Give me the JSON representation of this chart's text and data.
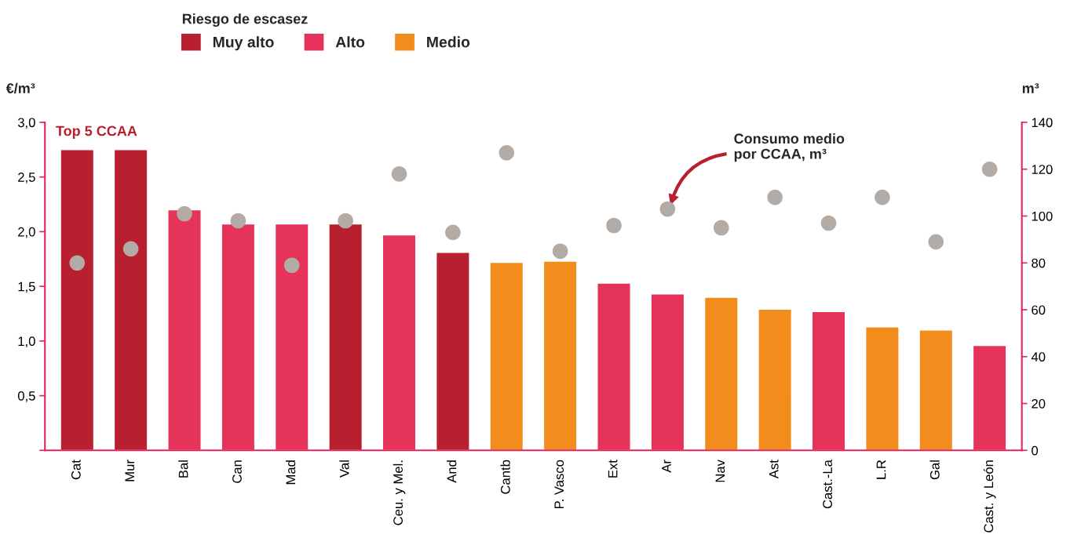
{
  "chart_data": {
    "type": "bar",
    "legend_title": "Riesgo de escasez",
    "ylabel": "€/m³",
    "y2label": "m³",
    "categories": [
      "Cat",
      "Mur",
      "Bal",
      "Can",
      "Mad",
      "Val",
      "Ceu. y Mel.",
      "And",
      "Cantb",
      "P. Vasco",
      "Ext",
      "Ar",
      "Nav",
      "Ast",
      "Cast.-La",
      "L.R",
      "Gal",
      "Cast. y León"
    ],
    "series": [
      {
        "name": "Muy alto",
        "color": "#b81f2f",
        "values": [
          2.75,
          2.75,
          null,
          null,
          null,
          2.07,
          null,
          1.81,
          null,
          null,
          null,
          null,
          null,
          null,
          null,
          null,
          null,
          null
        ]
      },
      {
        "name": "Alto",
        "color": "#e5335a",
        "values": [
          null,
          null,
          2.2,
          2.07,
          2.07,
          null,
          1.97,
          null,
          null,
          null,
          1.53,
          1.43,
          null,
          null,
          1.27,
          null,
          null,
          0.96
        ]
      },
      {
        "name": "Medio",
        "color": "#f28c1c",
        "values": [
          null,
          null,
          null,
          null,
          null,
          null,
          null,
          null,
          1.72,
          1.73,
          null,
          null,
          1.4,
          1.29,
          null,
          1.13,
          1.1,
          null
        ]
      },
      {
        "type": "scatter",
        "axis": "y2",
        "color": "#b3aba5",
        "marker": "circle",
        "values": [
          80,
          86,
          101,
          98,
          79,
          98,
          118,
          93,
          127,
          85,
          96,
          103,
          95,
          108,
          97,
          108,
          89,
          120
        ]
      }
    ],
    "ylim": [
      0,
      3.0
    ],
    "yticks": [
      {
        "value": 0,
        "label": null
      },
      {
        "value": 0.5,
        "label": "0,5"
      },
      {
        "value": 1.0,
        "label": "1,0"
      },
      {
        "value": 1.5,
        "label": "1,5"
      },
      {
        "value": 2.0,
        "label": "2,0"
      },
      {
        "value": 2.5,
        "label": "2,5"
      },
      {
        "value": 3.0,
        "label": "3,0"
      }
    ],
    "y2lim": [
      0,
      140
    ],
    "y2ticks": [
      0,
      20,
      40,
      60,
      80,
      100,
      120,
      140
    ],
    "annotations": [
      {
        "text": "Top 5 CCAA"
      },
      "Consumo medio\npor CCAA, m³"
    ],
    "legend": "top left",
    "grid": false
  }
}
